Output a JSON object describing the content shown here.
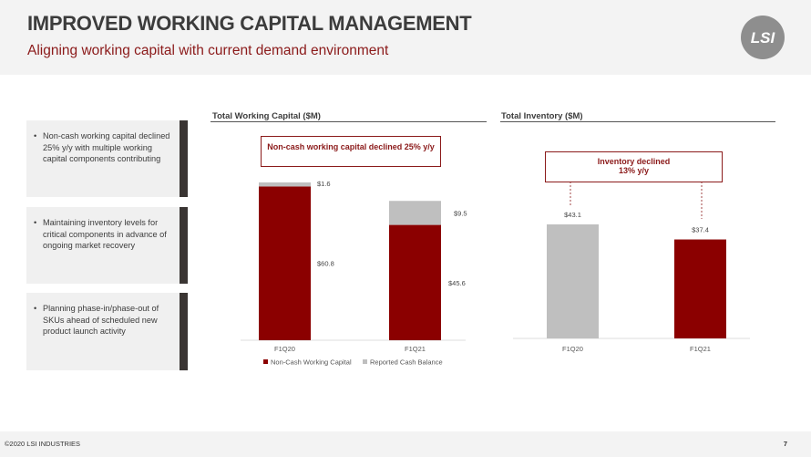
{
  "header": {
    "title": "IMPROVED WORKING CAPITAL MANAGEMENT",
    "subtitle": "Aligning working capital with current demand environment",
    "logo_text": "LSI"
  },
  "bullets": [
    "Non-cash working capital declined 25% y/y with multiple working capital components contributing",
    "Maintaining inventory levels for critical components in advance of ongoing market recovery",
    "Planning phase-in/phase-out of SKUs ahead of scheduled new product launch activity"
  ],
  "colors": {
    "accent": "#8b0000",
    "gray": "#bfbfbf",
    "subtitle": "#8b1a1a",
    "bar_dark": "#3a3533"
  },
  "chart_data": [
    {
      "type": "bar",
      "stacked": true,
      "title": "Total Working Capital ($M)",
      "callout": "Non-cash working capital declined 25% y/y",
      "categories": [
        "F1Q20",
        "F1Q21"
      ],
      "series": [
        {
          "name": "Non-Cash Working Capital",
          "values": [
            60.8,
            45.6
          ],
          "labels": [
            "$60.8",
            "$45.6"
          ],
          "color": "#8b0000"
        },
        {
          "name": "Reported Cash Balance",
          "values": [
            1.6,
            9.5
          ],
          "labels": [
            "$1.6",
            "$9.5"
          ],
          "color": "#bfbfbf"
        }
      ],
      "ylim": [
        0,
        62.4
      ],
      "legend": "bottom"
    },
    {
      "type": "bar",
      "title": "Total Inventory ($M)",
      "callout_line1": "Inventory declined",
      "callout_line2": "13% y/y",
      "categories": [
        "F1Q20",
        "F1Q21"
      ],
      "values": [
        43.1,
        37.4
      ],
      "labels": [
        "$43.1",
        "$37.4"
      ],
      "colors": [
        "#bfbfbf",
        "#8b0000"
      ],
      "ylim": [
        0,
        43.1
      ]
    }
  ],
  "footer": {
    "copyright": "©2020 LSI INDUSTRIES",
    "page": "7"
  }
}
